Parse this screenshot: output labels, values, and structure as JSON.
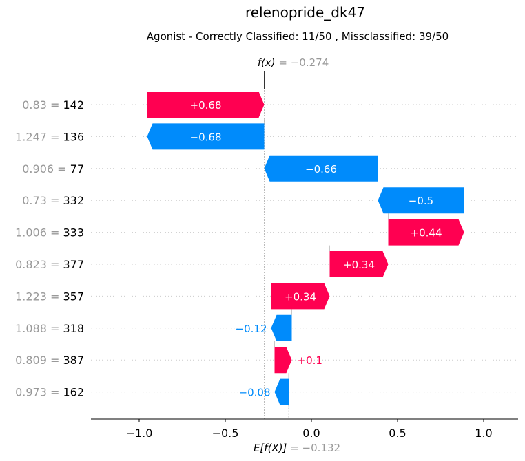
{
  "chart_data": {
    "type": "waterfall",
    "title": "relenopride_dk47",
    "subtitle": "Agonist - Correctly Classified: 11/50 , Missclassified: 39/50",
    "fx_label": "f(x)",
    "fx_value_text": "= −0.274",
    "fx_value": -0.274,
    "base_label": "E[f(X)]",
    "base_value_text": "= −0.132",
    "base_value": -0.132,
    "xlim": [
      -1.28,
      1.2
    ],
    "xticks": [
      -1.0,
      -0.5,
      0.0,
      0.5,
      1.0
    ],
    "xtick_labels": [
      "−1.0",
      "−0.5",
      "0.0",
      "0.5",
      "1.0"
    ],
    "features": [
      {
        "value": "0.83",
        "name": "142",
        "contribution": 0.68,
        "label": "+0.68",
        "start": -0.954,
        "end": -0.274
      },
      {
        "value": "1.247",
        "name": "136",
        "contribution": -0.68,
        "label": "−0.68",
        "start": -0.274,
        "end": -0.954
      },
      {
        "value": "0.906",
        "name": "77",
        "contribution": -0.66,
        "label": "−0.66",
        "start": 0.386,
        "end": -0.274
      },
      {
        "value": "0.73",
        "name": "332",
        "contribution": -0.5,
        "label": "−0.5",
        "start": 0.886,
        "end": 0.386
      },
      {
        "value": "1.006",
        "name": "333",
        "contribution": 0.44,
        "label": "+0.44",
        "start": 0.446,
        "end": 0.886
      },
      {
        "value": "0.823",
        "name": "377",
        "contribution": 0.34,
        "label": "+0.34",
        "start": 0.106,
        "end": 0.446
      },
      {
        "value": "1.223",
        "name": "357",
        "contribution": 0.34,
        "label": "+0.34",
        "start": -0.234,
        "end": 0.106
      },
      {
        "value": "1.088",
        "name": "318",
        "contribution": -0.12,
        "label": "−0.12",
        "start": -0.114,
        "end": -0.234
      },
      {
        "value": "0.809",
        "name": "387",
        "contribution": 0.1,
        "label": "+0.1",
        "start": -0.214,
        "end": -0.114
      },
      {
        "value": "0.973",
        "name": "162",
        "contribution": -0.08,
        "label": "−0.08",
        "start": -0.132,
        "end": -0.214
      }
    ],
    "colors": {
      "positive": "#ff0051",
      "negative": "#008bfb",
      "feature_value": "#999999",
      "feature_name": "#000000",
      "gridline": "#cccccc"
    }
  }
}
